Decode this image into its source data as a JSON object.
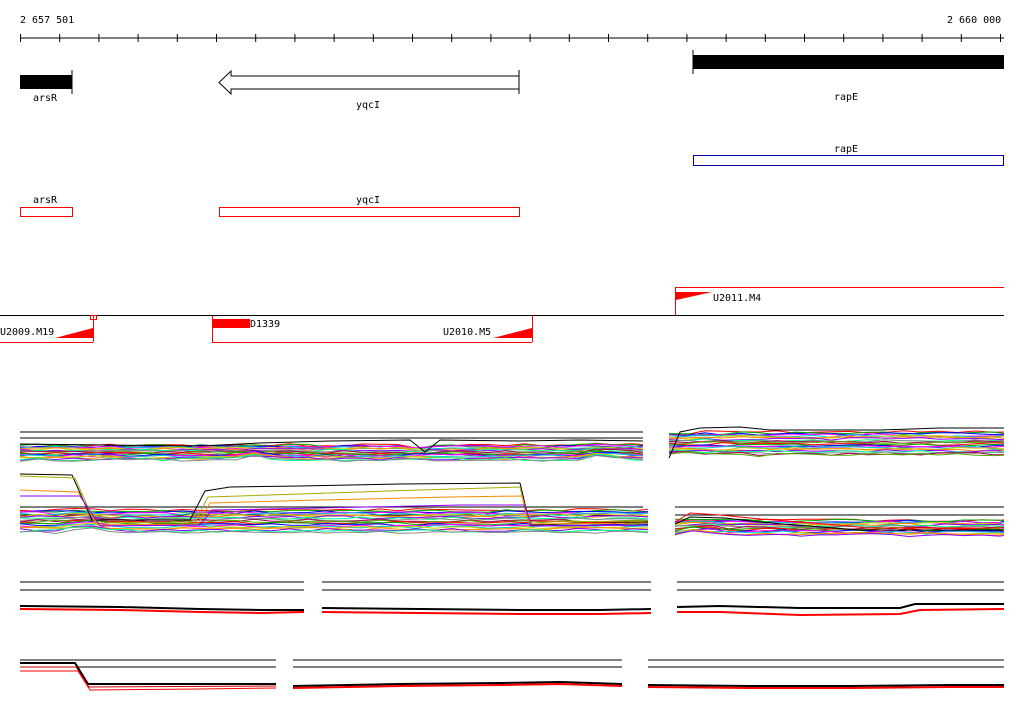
{
  "ruler": {
    "start_label": "2 657 501",
    "end_label": "2 660 000"
  },
  "genes": {
    "ars_r": "arsR",
    "yqc_i": "yqcI",
    "rap_e": "rapE"
  },
  "features": {
    "ars_r_box": "arsR",
    "yqc_i_box": "yqcI",
    "rap_e_box": "rapE"
  },
  "segments": {
    "u2011_m4": "U2011.M4",
    "u2009_m19": "U2009.M19",
    "d1339": "D1339",
    "u2010_m5": "U2010.M5"
  },
  "colors": {
    "gene_fill": "#000000",
    "feature_red": "#ff0000",
    "feature_blue": "#0000aa",
    "profile_palette": [
      "#ff0000",
      "#00aa00",
      "#0000ff",
      "#ff00ff",
      "#00cccc",
      "#cccc00",
      "#ff8800",
      "#8800ff",
      "#00ff88",
      "#888888",
      "#aa0055",
      "#55aa00"
    ]
  },
  "icons": [
    "reverse-arrow-icon",
    "red-triangle-icon"
  ]
}
